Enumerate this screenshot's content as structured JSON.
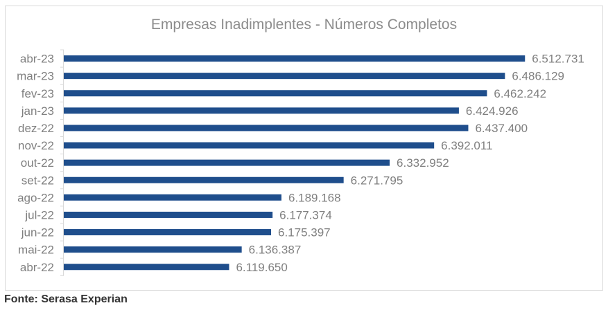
{
  "chart_data": {
    "type": "bar",
    "orientation": "horizontal",
    "title": "Empresas Inadimplentes - Números Completos",
    "categories": [
      "abr-23",
      "mar-23",
      "fev-23",
      "jan-23",
      "dez-22",
      "nov-22",
      "out-22",
      "set-22",
      "ago-22",
      "jul-22",
      "jun-22",
      "mai-22",
      "abr-22"
    ],
    "values": [
      6512731,
      6486129,
      6462242,
      6424926,
      6437400,
      6392011,
      6332952,
      6271795,
      6189168,
      6177374,
      6175397,
      6136387,
      6119650
    ],
    "data_labels": [
      "6.512.731",
      "6.486.129",
      "6.462.242",
      "6.424.926",
      "6.437.400",
      "6.392.011",
      "6.332.952",
      "6.271.795",
      "6.189.168",
      "6.177.374",
      "6.175.397",
      "6.136.387",
      "6.119.650"
    ],
    "xlim": [
      5900000,
      6600000
    ],
    "xlabel": "",
    "ylabel": "",
    "grid": false,
    "bar_color": "#1f4e8c"
  },
  "source": "Fonte: Serasa Experian"
}
